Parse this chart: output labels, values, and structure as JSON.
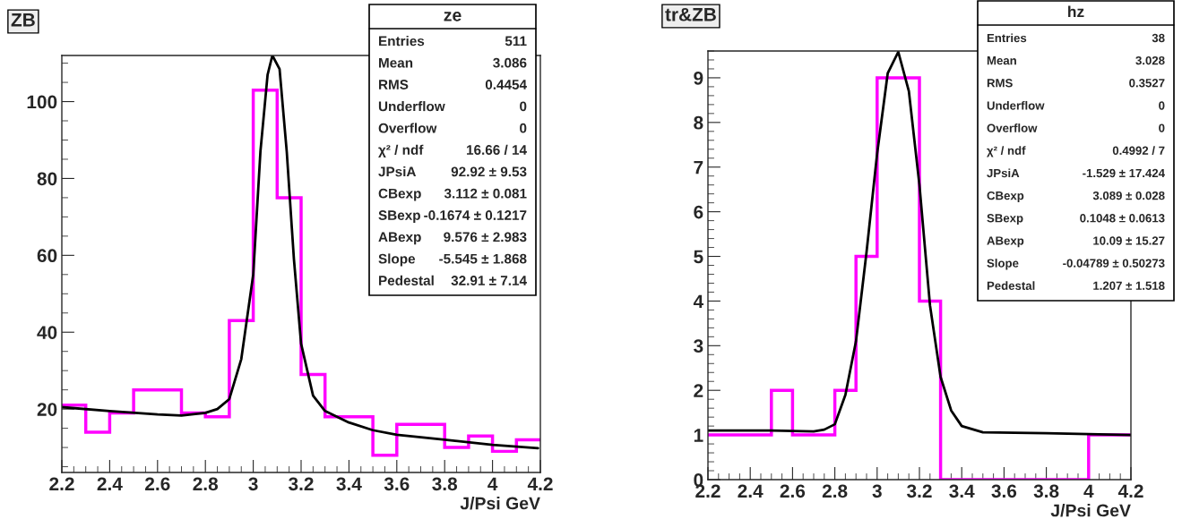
{
  "chart_data": [
    {
      "type": "histogram",
      "title": "ZB",
      "xlabel": "J/Psi GeV",
      "bins": [
        2.2,
        2.3,
        2.4,
        2.5,
        2.6,
        2.7,
        2.8,
        2.9,
        3.0,
        3.1,
        3.2,
        3.3,
        3.4,
        3.5,
        3.6,
        3.7,
        3.8,
        3.9,
        4.0,
        4.1,
        4.2
      ],
      "values": [
        21,
        14,
        19,
        25,
        25,
        19,
        18,
        43,
        103,
        75,
        29,
        18,
        18,
        8,
        16,
        16,
        10,
        13,
        9,
        12
      ],
      "color": "#ff00ff",
      "series": [
        {
          "type": "line",
          "color": "#000000",
          "x": [
            2.2,
            2.4,
            2.6,
            2.7,
            2.8,
            2.85,
            2.9,
            2.95,
            3.0,
            3.03,
            3.06,
            3.08,
            3.11,
            3.14,
            3.17,
            3.2,
            3.25,
            3.3,
            3.4,
            3.5,
            3.6,
            3.8,
            4.0,
            4.19
          ],
          "values": [
            20.5,
            19.5,
            18.6,
            18.3,
            19,
            20,
            22.6,
            33,
            55,
            87,
            107,
            112,
            108.5,
            87,
            59,
            37,
            23.5,
            19.5,
            16.5,
            14.5,
            13.3,
            12,
            10.7,
            9.8
          ]
        }
      ],
      "xlim": [
        2.2,
        4.2
      ],
      "ylim": [
        3.5,
        112
      ],
      "xticks": [
        {
          "value": 2.2,
          "label": "2.2"
        },
        {
          "value": 2.4,
          "label": "2.4"
        },
        {
          "value": 2.6,
          "label": "2.6"
        },
        {
          "value": 2.8,
          "label": "2.8"
        },
        {
          "value": 3.0,
          "label": "3"
        },
        {
          "value": 3.2,
          "label": "3.2"
        },
        {
          "value": 3.4,
          "label": "3.4"
        },
        {
          "value": 3.6,
          "label": "3.6"
        },
        {
          "value": 3.8,
          "label": "3.8"
        },
        {
          "value": 4.0,
          "label": "4"
        },
        {
          "value": 4.2,
          "label": "4.2"
        }
      ],
      "yticks": [
        20,
        40,
        60,
        80,
        100
      ],
      "grid": false,
      "annotations": [
        "ze",
        "Entries",
        "511",
        "Mean",
        "3.086",
        "RMS",
        "0.4454",
        "Underflow",
        "0",
        "Overflow",
        "0",
        "χ² / ndf",
        "16.66 / 14",
        "JPsiA",
        "92.92 ± 9.53",
        "CBexp",
        "3.112 ± 0.081",
        "SBexp",
        "-0.1674 ± 0.1217",
        "ABexp",
        "9.576 ± 2.983",
        "Slope",
        "-5.545 ± 1.868",
        "Pedestal",
        "32.91 ± 7.14"
      ]
    },
    {
      "type": "histogram",
      "title": "tr&ZB",
      "xlabel": "J/Psi GeV",
      "bins": [
        2.2,
        2.3,
        2.4,
        2.5,
        2.6,
        2.7,
        2.8,
        2.9,
        3.0,
        3.1,
        3.2,
        3.3,
        3.4,
        3.5,
        3.6,
        3.7,
        3.8,
        3.9,
        4.0,
        4.1,
        4.2
      ],
      "values": [
        1,
        1,
        1,
        2,
        1,
        1,
        2,
        5,
        9,
        9,
        4,
        0,
        0,
        0,
        0,
        0,
        0,
        0,
        1,
        1
      ],
      "color": "#ff00ff",
      "series": [
        {
          "type": "line",
          "color": "#000000",
          "x": [
            2.2,
            2.5,
            2.7,
            2.75,
            2.8,
            2.85,
            2.9,
            2.95,
            3.0,
            3.05,
            3.1,
            3.15,
            3.2,
            3.25,
            3.3,
            3.35,
            3.4,
            3.5,
            3.8,
            4.2
          ],
          "values": [
            1.1,
            1.1,
            1.08,
            1.12,
            1.24,
            1.9,
            3.1,
            5.1,
            7.3,
            9.1,
            9.58,
            8.7,
            6.6,
            3.9,
            2.3,
            1.55,
            1.2,
            1.06,
            1.04,
            1.0
          ]
        }
      ],
      "xlim": [
        2.2,
        4.2
      ],
      "ylim": [
        0,
        9.6
      ],
      "xticks": [
        {
          "value": 2.2,
          "label": "2.2"
        },
        {
          "value": 2.4,
          "label": "2.4"
        },
        {
          "value": 2.6,
          "label": "2.6"
        },
        {
          "value": 2.8,
          "label": "2.8"
        },
        {
          "value": 3.0,
          "label": "3"
        },
        {
          "value": 3.2,
          "label": "3.2"
        },
        {
          "value": 3.4,
          "label": "3.4"
        },
        {
          "value": 3.6,
          "label": "3.6"
        },
        {
          "value": 3.8,
          "label": "3.8"
        },
        {
          "value": 4.0,
          "label": "4"
        },
        {
          "value": 4.2,
          "label": "4.2"
        }
      ],
      "yticks": [
        0,
        1,
        2,
        3,
        4,
        5,
        6,
        7,
        8,
        9
      ],
      "grid": false,
      "annotations": [
        "hz",
        "Entries",
        "38",
        "Mean",
        "3.028",
        "RMS",
        "0.3527",
        "Underflow",
        "0",
        "Overflow",
        "0",
        "χ² / ndf",
        "0.4992 / 7",
        "JPsiA",
        "-1.529 ± 17.424",
        "CBexp",
        "3.089 ± 0.028",
        "SBexp",
        "0.1048 ± 0.0613",
        "ABexp",
        "10.09 ± 15.27",
        "Slope",
        "-0.04789 ± 0.50273",
        "Pedestal",
        "1.207 ± 1.518"
      ]
    }
  ]
}
